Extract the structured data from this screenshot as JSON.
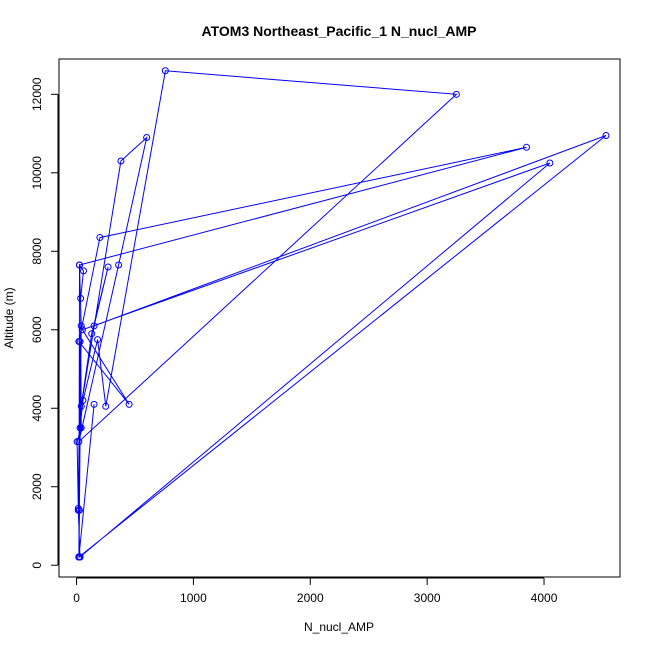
{
  "chart_data": {
    "type": "scatter",
    "title": "ATOM3 Northeast_Pacific_1 N_nucl_AMP",
    "xlabel": "N_nucl_AMP",
    "ylabel": "Altitude (m)",
    "xlim": [
      -150,
      4650
    ],
    "ylim": [
      -300,
      12900
    ],
    "x_ticks": [
      0,
      1000,
      2000,
      3000,
      4000
    ],
    "y_ticks": [
      0,
      2000,
      4000,
      6000,
      8000,
      10000,
      12000
    ],
    "grid": false,
    "legend": "none",
    "color": "#0000ff",
    "series": [
      {
        "x": [
          20,
          25,
          15,
          5,
          40,
          35,
          60,
          25,
          20,
          150,
          20,
          30,
          4050,
          50,
          450,
          20,
          200,
          3850,
          25,
          40,
          20,
          4530,
          150,
          270,
          130,
          40,
          380,
          600,
          360,
          20,
          3250,
          760,
          250,
          180,
          55,
          30,
          30,
          15,
          30
        ],
        "y": [
          210,
          1400,
          1450,
          3150,
          3500,
          6800,
          7500,
          7650,
          210,
          4100,
          210,
          210,
          10250,
          6000,
          4100,
          5700,
          8350,
          10650,
          7650,
          6100,
          210,
          10950,
          6100,
          7600,
          5900,
          4050,
          10300,
          10900,
          7650,
          3150,
          12000,
          12600,
          4050,
          5750,
          4200,
          3500,
          5700,
          1400,
          210
        ]
      }
    ]
  }
}
